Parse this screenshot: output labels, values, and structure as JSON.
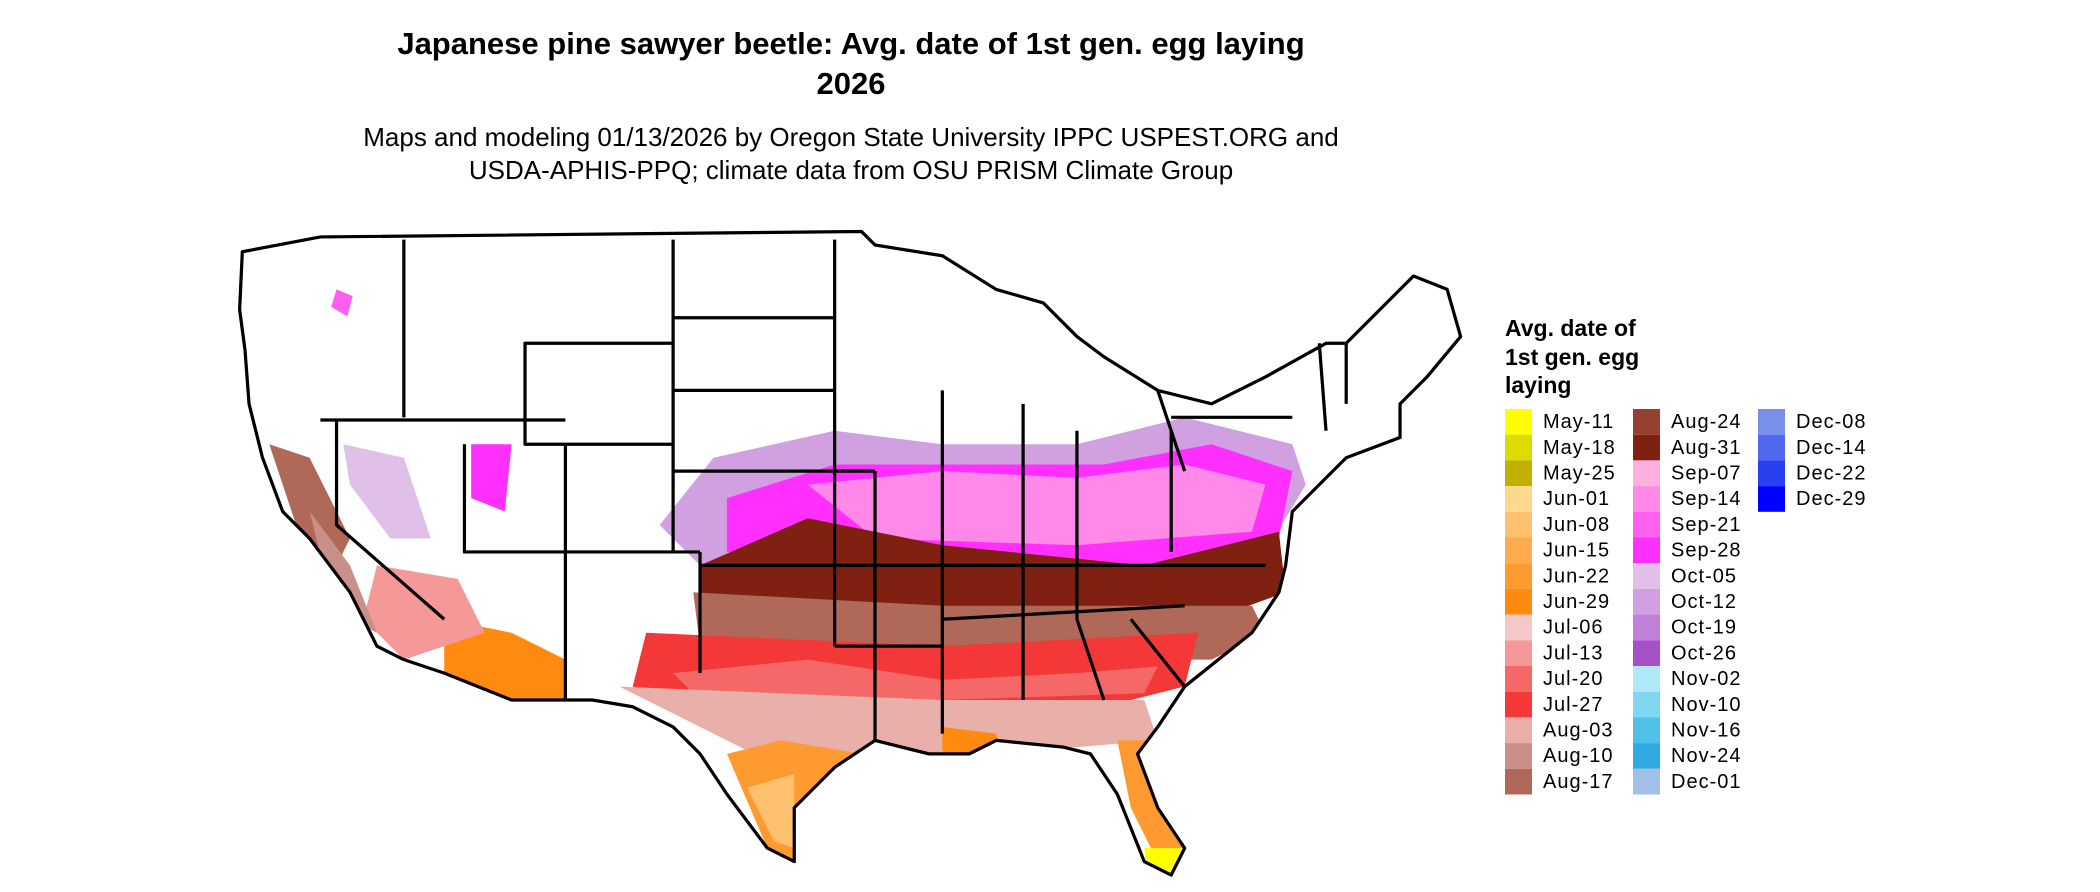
{
  "header": {
    "title": [
      "Japanese pine sawyer beetle: Avg. date of 1st gen. egg laying",
      "2026"
    ],
    "subtitle": [
      "Maps and modeling 01/13/2026 by Oregon State University IPPC USPEST.ORG and",
      "USDA-APHIS-PPQ; climate data from OSU PRISM Climate Group"
    ]
  },
  "legend": {
    "title": [
      "Avg. date of",
      "1st gen. egg",
      "laying"
    ],
    "items": [
      {
        "label": "May-11",
        "color": "#ffff00"
      },
      {
        "label": "May-18",
        "color": "#dcdc00"
      },
      {
        "label": "May-25",
        "color": "#c0b000"
      },
      {
        "label": "Jun-01",
        "color": "#ffd890"
      },
      {
        "label": "Jun-08",
        "color": "#ffc070"
      },
      {
        "label": "Jun-15",
        "color": "#ffac50"
      },
      {
        "label": "Jun-22",
        "color": "#ff9a30"
      },
      {
        "label": "Jun-29",
        "color": "#ff8a10"
      },
      {
        "label": "Jul-06",
        "color": "#f4c8c8"
      },
      {
        "label": "Jul-13",
        "color": "#f49898"
      },
      {
        "label": "Jul-20",
        "color": "#f46868"
      },
      {
        "label": "Jul-27",
        "color": "#f43838"
      },
      {
        "label": "Aug-03",
        "color": "#e8b0a8"
      },
      {
        "label": "Aug-10",
        "color": "#c89088"
      },
      {
        "label": "Aug-17",
        "color": "#b06858"
      },
      {
        "label": "Aug-24",
        "color": "#984030"
      },
      {
        "label": "Aug-31",
        "color": "#802010"
      },
      {
        "label": "Sep-07",
        "color": "#ffb0e0"
      },
      {
        "label": "Sep-14",
        "color": "#ff88e8"
      },
      {
        "label": "Sep-21",
        "color": "#ff60f0"
      },
      {
        "label": "Sep-28",
        "color": "#ff30ff"
      },
      {
        "label": "Oct-05",
        "color": "#e0c0e8"
      },
      {
        "label": "Oct-12",
        "color": "#d0a0e0"
      },
      {
        "label": "Oct-19",
        "color": "#c080d8"
      },
      {
        "label": "Oct-26",
        "color": "#a850c8"
      },
      {
        "label": "Nov-02",
        "color": "#b0e8f8"
      },
      {
        "label": "Nov-10",
        "color": "#80d8f0"
      },
      {
        "label": "Nov-16",
        "color": "#50c0e8"
      },
      {
        "label": "Nov-24",
        "color": "#30a8e0"
      },
      {
        "label": "Dec-01",
        "color": "#a0c0e8"
      },
      {
        "label": "Dec-08",
        "color": "#7890e8"
      },
      {
        "label": "Dec-14",
        "color": "#5068f0"
      },
      {
        "label": "Dec-22",
        "color": "#2840f0"
      },
      {
        "label": "Dec-29",
        "color": "#0000ff"
      }
    ]
  }
}
